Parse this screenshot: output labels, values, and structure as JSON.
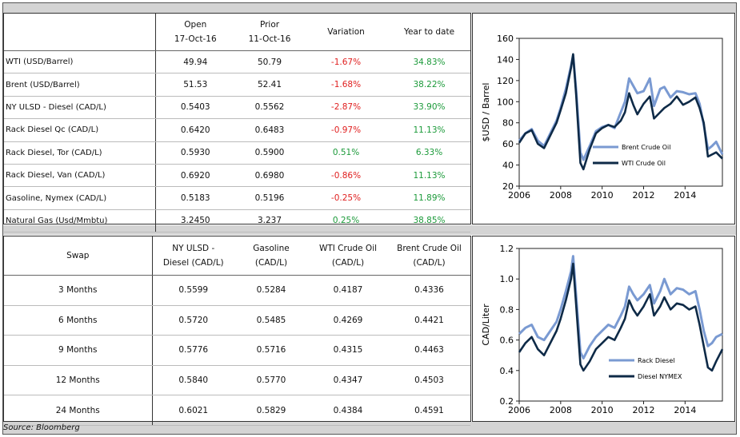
{
  "table1": {
    "headers": [
      "",
      "Open\n17-Oct-16",
      "Prior\n11-Oct-16",
      "Variation",
      "Year to date"
    ],
    "rows": [
      {
        "label": "WTI (USD/Barrel)",
        "open": "49.94",
        "prior": "50.79",
        "variation": "-1.67%",
        "ytd": "34.83%"
      },
      {
        "label": "Brent (USD/Barrel)",
        "open": "51.53",
        "prior": "52.41",
        "variation": "-1.68%",
        "ytd": "38.22%"
      },
      {
        "label": "NY ULSD - Diesel (CAD/L)",
        "open": "0.5403",
        "prior": "0.5562",
        "variation": "-2.87%",
        "ytd": "33.90%"
      },
      {
        "label": "Rack Diesel Qc (CAD/L)",
        "open": "0.6420",
        "prior": "0.6483",
        "variation": "-0.97%",
        "ytd": "11.13%"
      },
      {
        "label": "Rack Diesel, Tor (CAD/L)",
        "open": "0.5930",
        "prior": "0.5900",
        "variation": "0.51%",
        "ytd": "6.33%"
      },
      {
        "label": "Rack Diesel, Van (CAD/L)",
        "open": "0.6920",
        "prior": "0.6980",
        "variation": "-0.86%",
        "ytd": "11.13%"
      },
      {
        "label": "Gasoline, Nymex (CAD/L)",
        "open": "0.5183",
        "prior": "0.5196",
        "variation": "-0.25%",
        "ytd": "11.89%"
      },
      {
        "label": "Natural Gas (Usd/Mmbtu)",
        "open": "3.2450",
        "prior": "3.237",
        "variation": "0.25%",
        "ytd": "38.85%"
      }
    ]
  },
  "table2": {
    "headers": [
      "Swap",
      "NY ULSD -\nDiesel (CAD/L)",
      "Gasoline\n(CAD/L)",
      "WTI Crude Oil\n(CAD/L)",
      "Brent Crude Oil\n(CAD/L)"
    ],
    "rows": [
      {
        "term": "3 Months",
        "ulsd": "0.5599",
        "gasoline": "0.5284",
        "wti": "0.4187",
        "brent": "0.4336"
      },
      {
        "term": "6 Months",
        "ulsd": "0.5720",
        "gasoline": "0.5485",
        "wti": "0.4269",
        "brent": "0.4421"
      },
      {
        "term": "9 Months",
        "ulsd": "0.5776",
        "gasoline": "0.5716",
        "wti": "0.4315",
        "brent": "0.4463"
      },
      {
        "term": "12 Months",
        "ulsd": "0.5840",
        "gasoline": "0.5770",
        "wti": "0.4347",
        "brent": "0.4503"
      },
      {
        "term": "24 Months",
        "ulsd": "0.6021",
        "gasoline": "0.5829",
        "wti": "0.4384",
        "brent": "0.4591"
      }
    ]
  },
  "source": "Source: Bloomberg",
  "colors": {
    "light": "#7a9ad2",
    "dark": "#0e2a47",
    "negative": "#e02020",
    "positive": "#1c9a3a"
  },
  "chart_data": [
    {
      "type": "line",
      "ylabel": "$USD / Barrel",
      "xlabel": "",
      "xlim": [
        2006,
        2015.8
      ],
      "ylim": [
        20,
        160
      ],
      "xticks": [
        2006,
        2008,
        2010,
        2012,
        2014
      ],
      "yticks": [
        20,
        40,
        60,
        80,
        100,
        120,
        140,
        160
      ],
      "legend": "center-right",
      "series": [
        {
          "name": "Brent Crude Oil",
          "color": "#7a9ad2",
          "x": [
            2006,
            2006.3,
            2006.6,
            2006.9,
            2007.2,
            2007.5,
            2007.8,
            2008.0,
            2008.25,
            2008.5,
            2008.6,
            2008.75,
            2008.95,
            2009.1,
            2009.4,
            2009.7,
            2010,
            2010.3,
            2010.6,
            2010.9,
            2011.1,
            2011.3,
            2011.5,
            2011.7,
            2012,
            2012.3,
            2012.5,
            2012.8,
            2013,
            2013.3,
            2013.6,
            2013.9,
            2014.2,
            2014.5,
            2014.7,
            2014.9,
            2015.1,
            2015.3,
            2015.5,
            2015.8
          ],
          "values": [
            63,
            70,
            74,
            63,
            58,
            70,
            82,
            94,
            112,
            134,
            144,
            110,
            52,
            45,
            58,
            72,
            76,
            78,
            75,
            90,
            100,
            122,
            115,
            108,
            110,
            122,
            96,
            112,
            114,
            104,
            110,
            109,
            107,
            108,
            98,
            78,
            55,
            58,
            62,
            50
          ]
        },
        {
          "name": "WTI Crude Oil",
          "color": "#0e2a47",
          "x": [
            2006,
            2006.3,
            2006.6,
            2006.9,
            2007.2,
            2007.5,
            2007.8,
            2008.0,
            2008.25,
            2008.5,
            2008.6,
            2008.75,
            2008.95,
            2009.1,
            2009.4,
            2009.7,
            2010,
            2010.3,
            2010.6,
            2010.9,
            2011.1,
            2011.3,
            2011.5,
            2011.7,
            2012,
            2012.3,
            2012.5,
            2012.8,
            2013,
            2013.3,
            2013.6,
            2013.9,
            2014.2,
            2014.5,
            2014.7,
            2014.9,
            2015.1,
            2015.3,
            2015.5,
            2015.8
          ],
          "values": [
            61,
            70,
            73,
            60,
            56,
            68,
            80,
            92,
            108,
            132,
            145,
            105,
            42,
            36,
            55,
            70,
            75,
            78,
            76,
            82,
            90,
            108,
            97,
            88,
            98,
            105,
            84,
            90,
            94,
            98,
            105,
            97,
            100,
            104,
            94,
            80,
            48,
            50,
            52,
            46
          ]
        }
      ]
    },
    {
      "type": "line",
      "ylabel": "CAD/Liter",
      "xlabel": "",
      "xlim": [
        2006,
        2015.8
      ],
      "ylim": [
        0.2,
        1.2
      ],
      "xticks": [
        2006,
        2008,
        2010,
        2012,
        2014
      ],
      "yticks": [
        0.2,
        0.4,
        0.6,
        0.8,
        1.0,
        1.2
      ],
      "legend": "center-right",
      "series": [
        {
          "name": "Rack Diesel",
          "color": "#7a9ad2",
          "x": [
            2006,
            2006.3,
            2006.6,
            2006.9,
            2007.2,
            2007.5,
            2007.8,
            2008.0,
            2008.25,
            2008.5,
            2008.6,
            2008.75,
            2008.95,
            2009.1,
            2009.4,
            2009.7,
            2010,
            2010.3,
            2010.6,
            2010.9,
            2011.1,
            2011.3,
            2011.5,
            2011.7,
            2012,
            2012.3,
            2012.5,
            2012.8,
            2013,
            2013.3,
            2013.6,
            2013.9,
            2014.2,
            2014.5,
            2014.7,
            2014.9,
            2015.1,
            2015.3,
            2015.5,
            2015.8
          ],
          "values": [
            0.64,
            0.68,
            0.7,
            0.62,
            0.6,
            0.66,
            0.72,
            0.8,
            0.92,
            1.05,
            1.15,
            0.88,
            0.52,
            0.48,
            0.56,
            0.62,
            0.66,
            0.7,
            0.68,
            0.76,
            0.82,
            0.95,
            0.9,
            0.86,
            0.9,
            0.96,
            0.84,
            0.92,
            1.0,
            0.9,
            0.94,
            0.93,
            0.9,
            0.92,
            0.8,
            0.66,
            0.56,
            0.58,
            0.62,
            0.64
          ]
        },
        {
          "name": "Diesel NYMEX",
          "color": "#0e2a47",
          "x": [
            2006,
            2006.3,
            2006.6,
            2006.9,
            2007.2,
            2007.5,
            2007.8,
            2008.0,
            2008.25,
            2008.5,
            2008.6,
            2008.75,
            2008.95,
            2009.1,
            2009.4,
            2009.7,
            2010,
            2010.3,
            2010.6,
            2010.9,
            2011.1,
            2011.3,
            2011.5,
            2011.7,
            2012,
            2012.3,
            2012.5,
            2012.8,
            2013,
            2013.3,
            2013.6,
            2013.9,
            2014.2,
            2014.5,
            2014.7,
            2014.9,
            2015.1,
            2015.3,
            2015.5,
            2015.8
          ],
          "values": [
            0.52,
            0.58,
            0.62,
            0.54,
            0.5,
            0.58,
            0.66,
            0.74,
            0.86,
            1.0,
            1.1,
            0.82,
            0.44,
            0.4,
            0.46,
            0.54,
            0.58,
            0.62,
            0.6,
            0.68,
            0.74,
            0.86,
            0.8,
            0.76,
            0.82,
            0.9,
            0.76,
            0.82,
            0.88,
            0.8,
            0.84,
            0.83,
            0.8,
            0.82,
            0.7,
            0.56,
            0.42,
            0.4,
            0.46,
            0.54
          ]
        }
      ]
    }
  ]
}
